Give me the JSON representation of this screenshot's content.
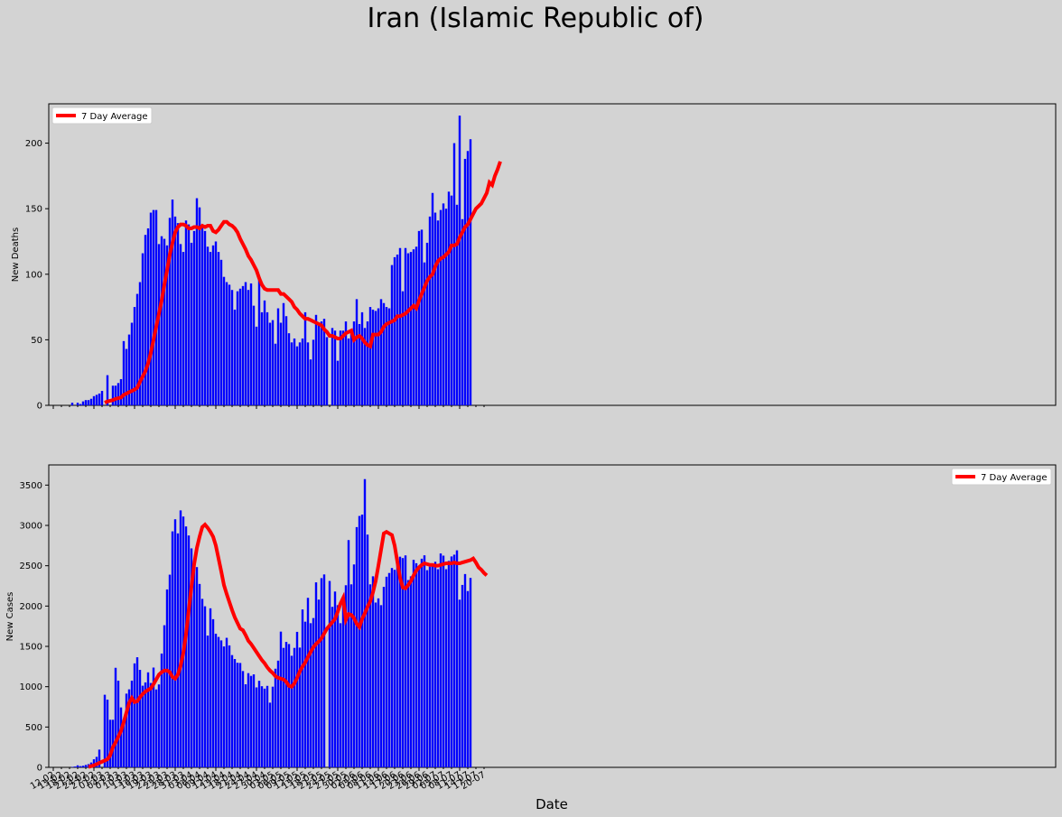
{
  "figure": {
    "title": "Iran (Islamic Republic of)",
    "background_color": "#d3d3d3"
  },
  "chart_data": [
    {
      "type": "bar",
      "ylabel": "New Deaths",
      "xlabel": "",
      "ylim": [
        0,
        230
      ],
      "yticks": [
        0,
        50,
        100,
        150,
        200
      ],
      "legend": {
        "placement": "top-left"
      },
      "x_start": "2020-02-19",
      "x_end": "2020-07-15",
      "bar_color": "#0000ff",
      "avg_color": "#ff0000",
      "series": [
        {
          "name": "New Deaths",
          "kind": "bar",
          "values": [
            2,
            0,
            2,
            1,
            3,
            4,
            4,
            5,
            7,
            8,
            9,
            11,
            0,
            23,
            0,
            15,
            15,
            17,
            20,
            49,
            43,
            54,
            63,
            75,
            85,
            94,
            116,
            130,
            135,
            147,
            149,
            149,
            123,
            129,
            127,
            122,
            143,
            157,
            144,
            139,
            123,
            117,
            141,
            138,
            124,
            133,
            158,
            151,
            138,
            133,
            121,
            117,
            122,
            125,
            117,
            111,
            98,
            94,
            92,
            88,
            73,
            87,
            89,
            91,
            94,
            88,
            93,
            76,
            60,
            96,
            71,
            80,
            71,
            63,
            65,
            47,
            74,
            63,
            78,
            68,
            55,
            48,
            51,
            45,
            48,
            51,
            71,
            48,
            35,
            50,
            69,
            62,
            64,
            66,
            52,
            0,
            59,
            57,
            34,
            57,
            57,
            64,
            51,
            57,
            64,
            81,
            62,
            71,
            59,
            64,
            75,
            73,
            72,
            74,
            81,
            78,
            75,
            74,
            107,
            113,
            115,
            120,
            87,
            120,
            116,
            117,
            119,
            121,
            133,
            134,
            109,
            124,
            144,
            162,
            147,
            141,
            149,
            154,
            150,
            163,
            160,
            200,
            153,
            221,
            142,
            188,
            194,
            203
          ]
        },
        {
          "name": "7 Day Average",
          "kind": "line",
          "values": [
            null,
            null,
            null,
            null,
            null,
            null,
            2,
            3,
            3.5,
            4,
            5,
            5.5,
            6,
            8,
            9,
            10,
            11,
            12,
            13.5,
            18,
            22,
            26,
            32,
            40,
            50,
            60,
            70,
            80,
            92,
            103,
            115,
            124,
            132,
            136,
            138,
            138,
            137,
            135,
            135,
            136,
            136,
            135,
            137,
            136,
            137,
            137,
            133,
            132,
            134,
            137,
            140,
            140,
            138,
            137,
            135,
            132,
            127,
            123,
            119,
            114,
            111,
            107,
            103,
            97,
            92,
            89,
            88,
            88,
            88,
            88,
            88,
            85,
            85,
            83,
            81,
            79,
            75,
            73,
            70,
            68,
            66,
            66,
            65,
            64,
            63,
            62,
            61,
            58,
            56,
            53,
            53,
            52,
            51,
            51,
            53,
            55,
            56,
            57,
            50,
            52,
            53,
            51,
            48,
            46,
            45,
            54,
            54,
            54,
            56,
            60,
            62,
            63,
            64,
            65,
            68,
            68,
            69,
            70,
            72,
            74,
            76,
            74,
            80,
            85,
            90,
            95,
            98,
            100,
            106,
            110,
            112,
            113,
            115,
            117,
            122,
            122,
            123,
            128,
            132,
            136,
            138,
            142,
            146,
            150,
            152,
            154,
            158,
            162,
            170,
            168,
            175,
            180,
            186
          ]
        }
      ]
    },
    {
      "type": "bar",
      "ylabel": "New Cases",
      "xlabel": "Date",
      "ylim": [
        0,
        3750
      ],
      "yticks": [
        0,
        500,
        1000,
        1500,
        2000,
        2500,
        3000,
        3500
      ],
      "legend": {
        "placement": "top-right"
      },
      "x_start": "2020-02-19",
      "x_end": "2020-07-15",
      "bar_color": "#0000ff",
      "avg_color": "#ff0000",
      "series": [
        {
          "name": "New Cases",
          "kind": "bar",
          "values": [
            5,
            10,
            25,
            15,
            20,
            30,
            40,
            60,
            100,
            130,
            220,
            0,
            900,
            840,
            590,
            590,
            1234,
            1075,
            743,
            595,
            914,
            967,
            1075,
            1289,
            1365,
            1209,
            1012,
            1053,
            1178,
            1046,
            1237,
            966,
            1028,
            1411,
            1762,
            2206,
            2389,
            2926,
            3076,
            2901,
            3186,
            3110,
            2987,
            2875,
            2715,
            2560,
            2483,
            2274,
            2089,
            1997,
            1634,
            1972,
            1837,
            1657,
            1617,
            1574,
            1499,
            1606,
            1512,
            1392,
            1343,
            1297,
            1294,
            1194,
            1030,
            1168,
            1134,
            1153,
            991,
            1073,
            1006,
            976,
            1010,
            802,
            1000,
            1223,
            1323,
            1683,
            1481,
            1556,
            1529,
            1383,
            1481,
            1680,
            1485,
            1958,
            1806,
            2102,
            1787,
            1851,
            2294,
            2080,
            2346,
            2392,
            0,
            2311,
            1990,
            2180,
            2011,
            1787,
            2089,
            2258,
            2818,
            2269,
            2516,
            2979,
            3117,
            3134,
            3574,
            2886,
            2269,
            2369,
            2043,
            2095,
            2011,
            2238,
            2364,
            2410,
            2472,
            2449,
            2563,
            2612,
            2595,
            2628,
            2322,
            2369,
            2573,
            2531,
            2489,
            2587,
            2629,
            2445,
            2489,
            2509,
            2549,
            2457,
            2652,
            2625,
            2457,
            2560,
            2615,
            2637,
            2691,
            2079,
            2262,
            2397,
            2186,
            2349
          ]
        },
        {
          "name": "7 Day Average",
          "kind": "line",
          "values": [
            null,
            null,
            null,
            null,
            null,
            null,
            null,
            null,
            null,
            null,
            null,
            null,
            null,
            null,
            null,
            null,
            null,
            null,
            null,
            null,
            null,
            null,
            null,
            null,
            null,
            null,
            null,
            null,
            null,
            null,
            null,
            null,
            null,
            null,
            null,
            null,
            null,
            null,
            null,
            null,
            null,
            null,
            null,
            null,
            null,
            null,
            null,
            null,
            null,
            null,
            null,
            null,
            null,
            null,
            null,
            null,
            null,
            null,
            null,
            null,
            null,
            null,
            null,
            null,
            null,
            null,
            null,
            null,
            null,
            null,
            null,
            null,
            null,
            null,
            null,
            null,
            null,
            null,
            null,
            null,
            null,
            null,
            null,
            null,
            null,
            null,
            null,
            null,
            null,
            null,
            null,
            null,
            null,
            null,
            null,
            null,
            null,
            null,
            null,
            null,
            null,
            null,
            null,
            null,
            null,
            null,
            null,
            null,
            null,
            null,
            null,
            null,
            null,
            null,
            null,
            null,
            null,
            null,
            null,
            null,
            null,
            null,
            null,
            null,
            null,
            null,
            null,
            null,
            null,
            null,
            null,
            null,
            null,
            null,
            null,
            null,
            null,
            null,
            null,
            null,
            null,
            null,
            null,
            null,
            null,
            null,
            null,
            null
          ]
        }
      ],
      "avg_values": [
        5,
        15,
        25,
        40,
        55,
        70,
        85,
        100,
        150,
        250,
        310,
        380,
        450,
        560,
        680,
        800,
        860,
        810,
        820,
        870,
        910,
        940,
        960,
        980,
        1030,
        1090,
        1150,
        1180,
        1200,
        1200,
        1180,
        1120,
        1100,
        1150,
        1260,
        1420,
        1650,
        1950,
        2240,
        2520,
        2720,
        2860,
        2980,
        3010,
        2970,
        2920,
        2860,
        2750,
        2590,
        2430,
        2260,
        2150,
        2050,
        1950,
        1860,
        1790,
        1720,
        1700,
        1640,
        1570,
        1530,
        1480,
        1430,
        1380,
        1330,
        1290,
        1240,
        1200,
        1170,
        1130,
        1110,
        1100,
        1090,
        1060,
        1010,
        1000,
        1040,
        1110,
        1190,
        1250,
        1300,
        1370,
        1430,
        1490,
        1530,
        1560,
        1600,
        1660,
        1720,
        1760,
        1800,
        1840,
        1930,
        2030,
        2100,
        1830,
        1900,
        1890,
        1850,
        1780,
        1740,
        1840,
        1910,
        1990,
        2060,
        2170,
        2310,
        2500,
        2700,
        2900,
        2920,
        2900,
        2880,
        2750,
        2550,
        2350,
        2230,
        2220,
        2260,
        2310,
        2380,
        2440,
        2480,
        2510,
        2530,
        2520,
        2510,
        2510,
        2500,
        2500,
        2510,
        2520,
        2530,
        2530,
        2530,
        2540,
        2530,
        2530,
        2540,
        2550,
        2560,
        2570,
        2590,
        2540,
        2480,
        2450,
        2410,
        2380
      ]
    }
  ],
  "x_ticks": [
    "12-02",
    "15-02",
    "18-02",
    "21-02",
    "24-02",
    "27-02",
    "01-03",
    "04-03",
    "07-03",
    "10-03",
    "13-03",
    "16-03",
    "19-03",
    "22-03",
    "25-03",
    "28-03",
    "31-03",
    "03-04",
    "06-04",
    "09-04",
    "12-04",
    "15-04",
    "18-04",
    "21-04",
    "24-04",
    "27-04",
    "30-04",
    "03-05",
    "06-05",
    "09-05",
    "12-05",
    "15-05",
    "18-05",
    "21-05",
    "24-05",
    "27-05",
    "30-05",
    "02-06",
    "05-06",
    "08-06",
    "11-06",
    "14-06",
    "17-06",
    "20-06",
    "23-06",
    "26-06",
    "29-06",
    "02-07",
    "05-07",
    "08-07",
    "11-07",
    "14-07",
    "17-07",
    "20-07"
  ]
}
